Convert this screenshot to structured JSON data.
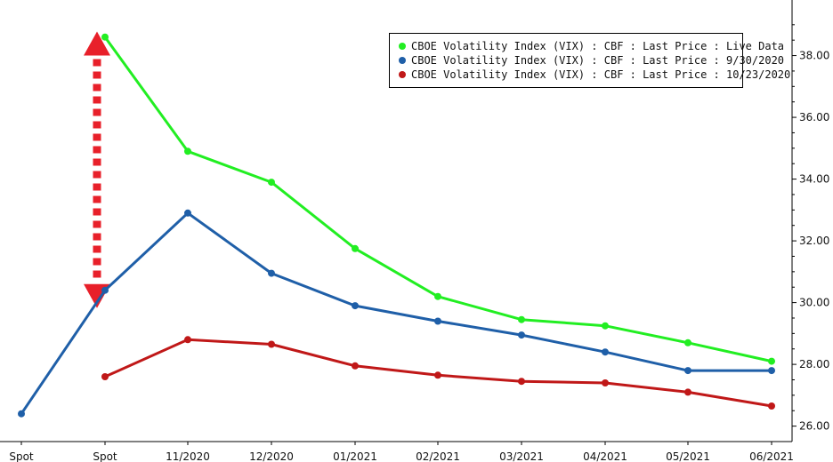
{
  "chart_data": {
    "type": "line",
    "categories": [
      "Spot",
      "Spot",
      "11/2020",
      "12/2020",
      "01/2021",
      "02/2021",
      "03/2021",
      "04/2021",
      "05/2021",
      "06/2021"
    ],
    "series": [
      {
        "name": "CBOE Volatility Index (VIX) : CBF : Last Price : Live Data",
        "color": "#22ee22",
        "values": [
          null,
          38.6,
          34.9,
          33.9,
          31.75,
          30.2,
          29.45,
          29.25,
          28.7,
          28.1
        ]
      },
      {
        "name": "CBOE Volatility Index (VIX) : CBF : Last Price : 9/30/2020",
        "color": "#1f5fa8",
        "values": [
          26.4,
          30.4,
          32.9,
          30.95,
          29.9,
          29.4,
          28.95,
          28.4,
          27.8,
          27.8
        ]
      },
      {
        "name": "CBOE Volatility Index (VIX) : CBF : Last Price : 10/23/2020",
        "color": "#c01818",
        "values": [
          null,
          27.6,
          28.8,
          28.65,
          27.95,
          27.65,
          27.45,
          27.4,
          27.1,
          26.65
        ]
      }
    ],
    "y_ticks": [
      "26.00",
      "28.00",
      "30.00",
      "32.00",
      "34.00",
      "36.00",
      "38.00"
    ],
    "ylim": [
      25.5,
      39.8
    ],
    "y_axis_position": "right",
    "legend_position": "top-right",
    "grid": false,
    "annotation": {
      "type": "double-arrow",
      "color": "#e8202a",
      "from_value": 38.0,
      "to_value": 30.6
    }
  }
}
